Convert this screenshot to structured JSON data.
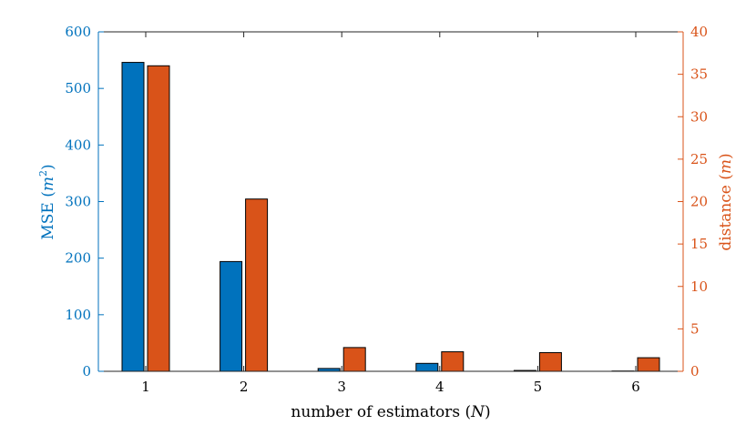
{
  "colors": {
    "left_axis": "#0072BD",
    "right_axis": "#D95319",
    "bar_mse": "#0072BD",
    "bar_distance": "#D95319",
    "bar_edge": "#000000",
    "frame": "#262626"
  },
  "chart_data": {
    "type": "bar",
    "title": "",
    "categories": [
      "1",
      "2",
      "3",
      "4",
      "5",
      "6"
    ],
    "xlabel": {
      "prefix": "number of estimators (",
      "symbol": "N",
      "suffix": ")"
    },
    "ylabel_left": {
      "prefix": "MSE (",
      "symbol": "m",
      "sup": "2",
      "suffix": ")"
    },
    "ylabel_right": {
      "prefix": "distance (",
      "symbol": "m",
      "suffix": ")"
    },
    "ylim_left": [
      0,
      600
    ],
    "yticks_left": [
      0,
      100,
      200,
      300,
      400,
      500,
      600
    ],
    "ylim_right": [
      0,
      40
    ],
    "yticks_right": [
      0,
      5,
      10,
      15,
      20,
      25,
      30,
      35,
      40
    ],
    "grid": false,
    "series": [
      {
        "axis": "left",
        "values": [
          546,
          194,
          5,
          14,
          1.5,
          0.5
        ]
      },
      {
        "axis": "right",
        "values": [
          36,
          20.3,
          2.8,
          2.3,
          2.2,
          1.6
        ]
      }
    ]
  }
}
